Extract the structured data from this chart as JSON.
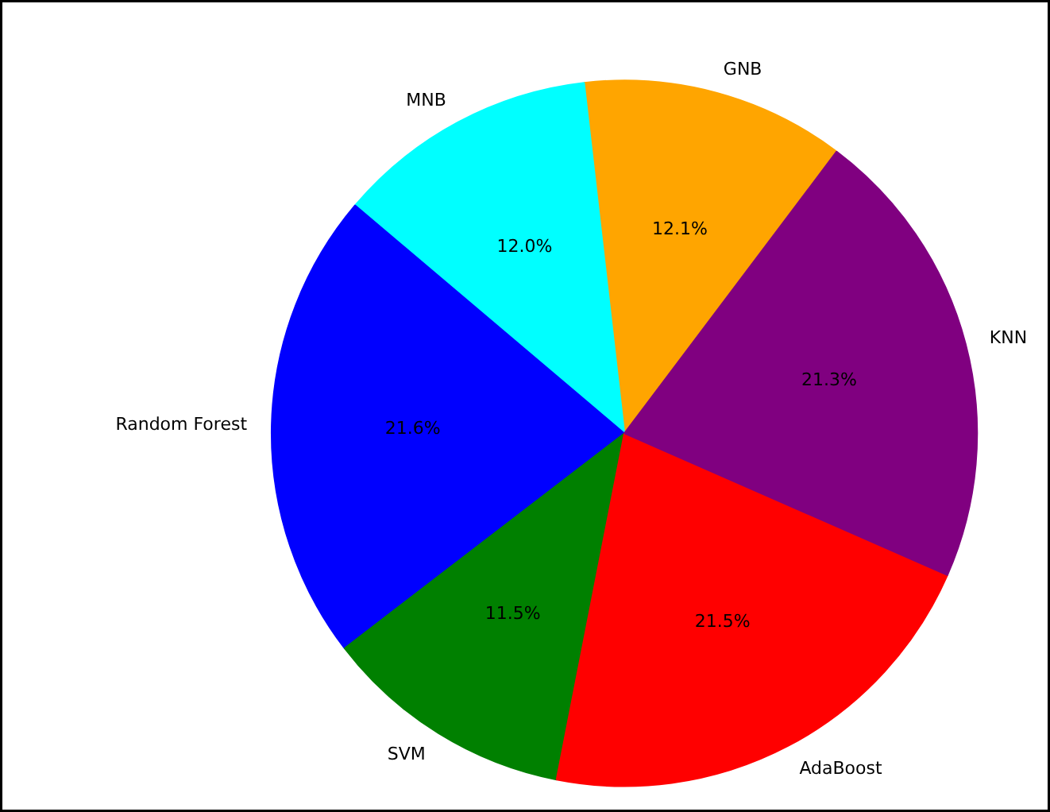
{
  "chart_data": {
    "type": "pie",
    "categories": [
      "GNB",
      "MNB",
      "Random Forest",
      "SVM",
      "AdaBoost",
      "KNN"
    ],
    "values": [
      12.1,
      12.0,
      21.6,
      11.5,
      21.5,
      21.3
    ],
    "colors": [
      "#ffa500",
      "#00ffff",
      "#0000ff",
      "#008000",
      "#ff0000",
      "#800080"
    ],
    "value_labels": [
      "12.1%",
      "12.0%",
      "21.6%",
      "11.5%",
      "21.5%",
      "21.3%"
    ]
  }
}
